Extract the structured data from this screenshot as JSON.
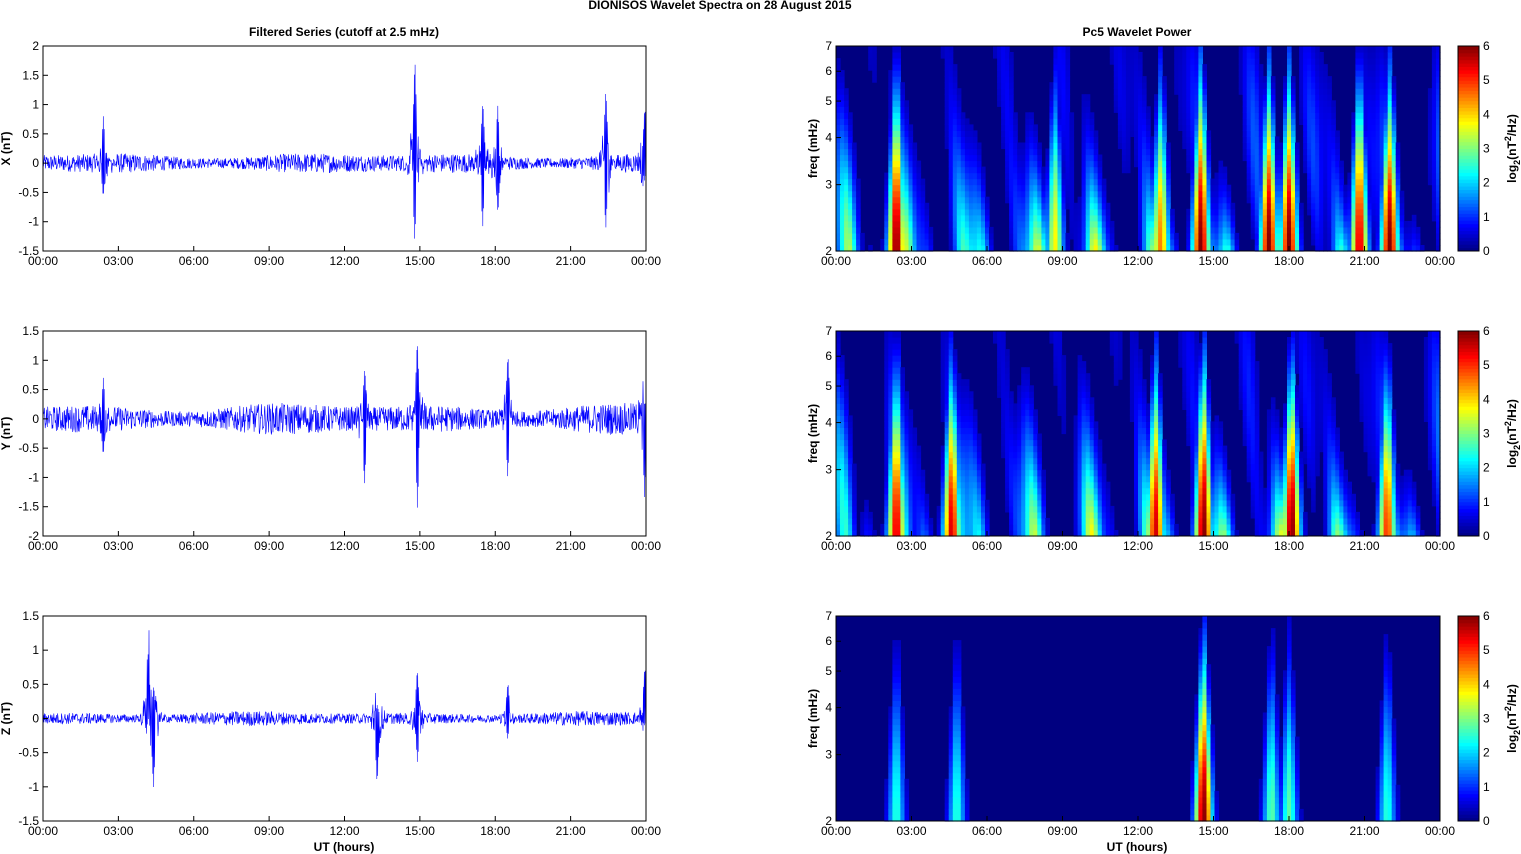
{
  "figure": {
    "suptitle": "DIONISOS Wavelet Spectra on 28 August    2015",
    "left_title": "Filtered Series (cutoff at 2.5 mHz)",
    "right_title": "Pc5 Wavelet Power",
    "xlabel": "UT (hours)",
    "xticks": [
      "00:00",
      "03:00",
      "06:00",
      "09:00",
      "12:00",
      "15:00",
      "18:00",
      "21:00",
      "00:00"
    ]
  },
  "colors": {
    "trace": "#0000ff",
    "axis": "#000000",
    "background": "#ffffff"
  },
  "chart_data": [
    {
      "type": "line",
      "ylabel": "X (nT)",
      "xlim": [
        0,
        24
      ],
      "ylim": [
        -1.5,
        2
      ],
      "yticks": [
        "2",
        "1.5",
        "1",
        "0.5",
        "0",
        "-0.5",
        "-1",
        "-1.5"
      ],
      "series": [
        {
          "name": "",
          "x": [
            0,
            2.4,
            2.5,
            14.8,
            14.9,
            17.5,
            18.2,
            22.4,
            22.5,
            24
          ],
          "y": [
            0,
            0.8,
            -0.6,
            1.85,
            -1.35,
            1.1,
            -1.0,
            1.3,
            -1.15,
            1.0
          ]
        }
      ],
      "noise_amplitude": 0.12,
      "bursts": [
        [
          2.4,
          0.8,
          -0.6
        ],
        [
          14.8,
          1.85,
          -1.35
        ],
        [
          17.5,
          1.1,
          -1.1
        ],
        [
          18.1,
          1.0,
          -0.9
        ],
        [
          22.4,
          1.3,
          -1.15
        ],
        [
          23.95,
          1.0,
          -0.3
        ]
      ]
    },
    {
      "type": "line",
      "ylabel": "Y (nT)",
      "xlim": [
        0,
        24
      ],
      "ylim": [
        -2,
        1.5
      ],
      "yticks": [
        "1.5",
        "1",
        "0.5",
        "0",
        "-0.5",
        "-1",
        "-1.5",
        "-2"
      ],
      "series": [
        {
          "name": "",
          "x": [
            0,
            2.4,
            12.8,
            14.9,
            15.0,
            18.5,
            24
          ],
          "y": [
            0,
            0.7,
            -1.15,
            1.4,
            -1.55,
            1.15,
            -1.35
          ]
        }
      ],
      "noise_amplitude": 0.18,
      "bursts": [
        [
          2.4,
          0.7,
          -0.65
        ],
        [
          12.8,
          0.9,
          -1.15
        ],
        [
          14.9,
          1.4,
          -1.55
        ],
        [
          18.5,
          1.15,
          -1.0
        ],
        [
          23.95,
          0.3,
          -1.35
        ]
      ]
    },
    {
      "type": "line",
      "ylabel": "Z (nT)",
      "xlim": [
        0,
        24
      ],
      "ylim": [
        -1.5,
        1.5
      ],
      "yticks": [
        "1.5",
        "1",
        "0.5",
        "0",
        "-0.5",
        "-1",
        "-1.5"
      ],
      "series": [
        {
          "name": "",
          "x": [
            0,
            4.2,
            4.4,
            13.3,
            14.9,
            18.5,
            24
          ],
          "y": [
            0,
            1.25,
            -1.05,
            -1.0,
            0.75,
            0.55,
            0.8
          ]
        }
      ],
      "noise_amplitude": 0.07,
      "bursts": [
        [
          4.2,
          1.25,
          -0.2
        ],
        [
          4.4,
          0.5,
          -1.05
        ],
        [
          13.3,
          0.2,
          -1.0
        ],
        [
          14.9,
          0.75,
          -0.65
        ],
        [
          18.5,
          0.55,
          -0.3
        ],
        [
          23.95,
          0.8,
          -0.1
        ]
      ]
    },
    {
      "type": "heatmap",
      "component": "X",
      "ylabel": "freq (mHz)",
      "yscale": "log",
      "ylim": [
        2,
        7
      ],
      "yticks": [
        "7",
        "6",
        "5",
        "4",
        "3",
        "2"
      ],
      "colorbar_label": "log2(nT^2/Hz)",
      "clim": [
        0,
        6
      ],
      "colorbar_ticks": [
        "6",
        "5",
        "4",
        "3",
        "2",
        "1",
        "0"
      ],
      "peaks": [
        [
          2.4,
          6,
          1.8
        ],
        [
          8.7,
          3.8,
          1.6
        ],
        [
          12.9,
          4.5,
          1.8
        ],
        [
          14.5,
          6,
          2.4
        ],
        [
          17.2,
          6,
          2.0
        ],
        [
          18.0,
          6,
          2.0
        ],
        [
          20.8,
          5.5,
          2.1
        ],
        [
          22.0,
          6,
          1.8
        ]
      ]
    },
    {
      "type": "heatmap",
      "component": "Y",
      "ylabel": "freq (mHz)",
      "yscale": "log",
      "ylim": [
        2,
        7
      ],
      "yticks": [
        "7",
        "6",
        "5",
        "4",
        "3",
        "2"
      ],
      "colorbar_label": "log2(nT^2/Hz)",
      "clim": [
        0,
        6
      ],
      "colorbar_ticks": [
        "6",
        "5",
        "4",
        "3",
        "2",
        "1",
        "0"
      ],
      "peaks": [
        [
          2.4,
          5.5,
          1.8
        ],
        [
          4.6,
          5.5,
          1.8
        ],
        [
          12.7,
          5.5,
          1.8
        ],
        [
          14.6,
          6,
          2.2
        ],
        [
          18.1,
          6,
          2.0
        ],
        [
          21.9,
          5,
          1.6
        ]
      ]
    },
    {
      "type": "heatmap",
      "component": "Z",
      "ylabel": "freq (mHz)",
      "yscale": "log",
      "ylim": [
        2,
        7
      ],
      "yticks": [
        "7",
        "6",
        "5",
        "4",
        "3",
        "2"
      ],
      "colorbar_label": "log2(nT^2/Hz)",
      "clim": [
        0,
        6
      ],
      "colorbar_ticks": [
        "6",
        "5",
        "4",
        "3",
        "2",
        "1",
        "0"
      ],
      "peaks": [
        [
          2.4,
          2.5,
          1.6
        ],
        [
          4.8,
          2.5,
          1.6
        ],
        [
          14.6,
          6,
          2.0
        ],
        [
          17.3,
          2.8,
          1.7
        ],
        [
          18.0,
          2.8,
          1.7
        ],
        [
          21.9,
          2.5,
          1.6
        ]
      ]
    }
  ]
}
